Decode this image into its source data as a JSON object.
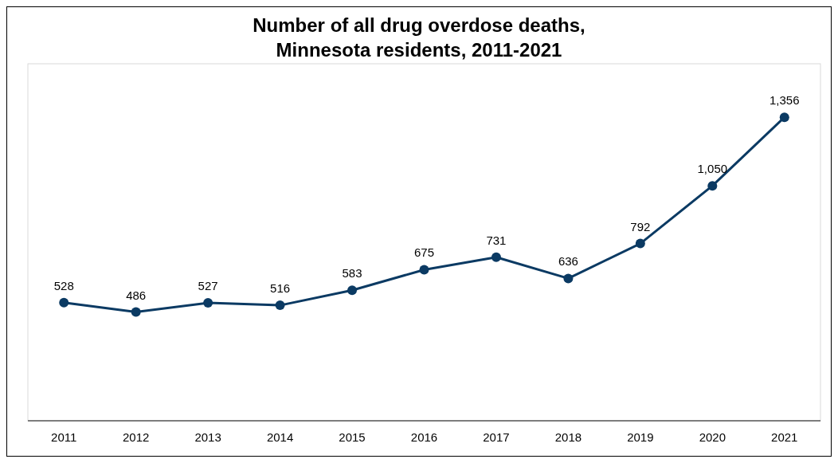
{
  "chart_data": {
    "type": "line",
    "title": "Number of all drug overdose deaths, Minnesota residents, 2011-2021",
    "categories": [
      "2011",
      "2012",
      "2013",
      "2014",
      "2015",
      "2016",
      "2017",
      "2018",
      "2019",
      "2020",
      "2021"
    ],
    "series": [
      {
        "color": "#0b3a63",
        "values": [
          528,
          486,
          527,
          516,
          583,
          675,
          731,
          636,
          792,
          1050,
          1356
        ],
        "value_labels": [
          "528",
          "486",
          "527",
          "516",
          "583",
          "675",
          "731",
          "636",
          "792",
          "1,050",
          "1,356"
        ]
      }
    ],
    "marker": "circle",
    "line_style": "solid"
  }
}
